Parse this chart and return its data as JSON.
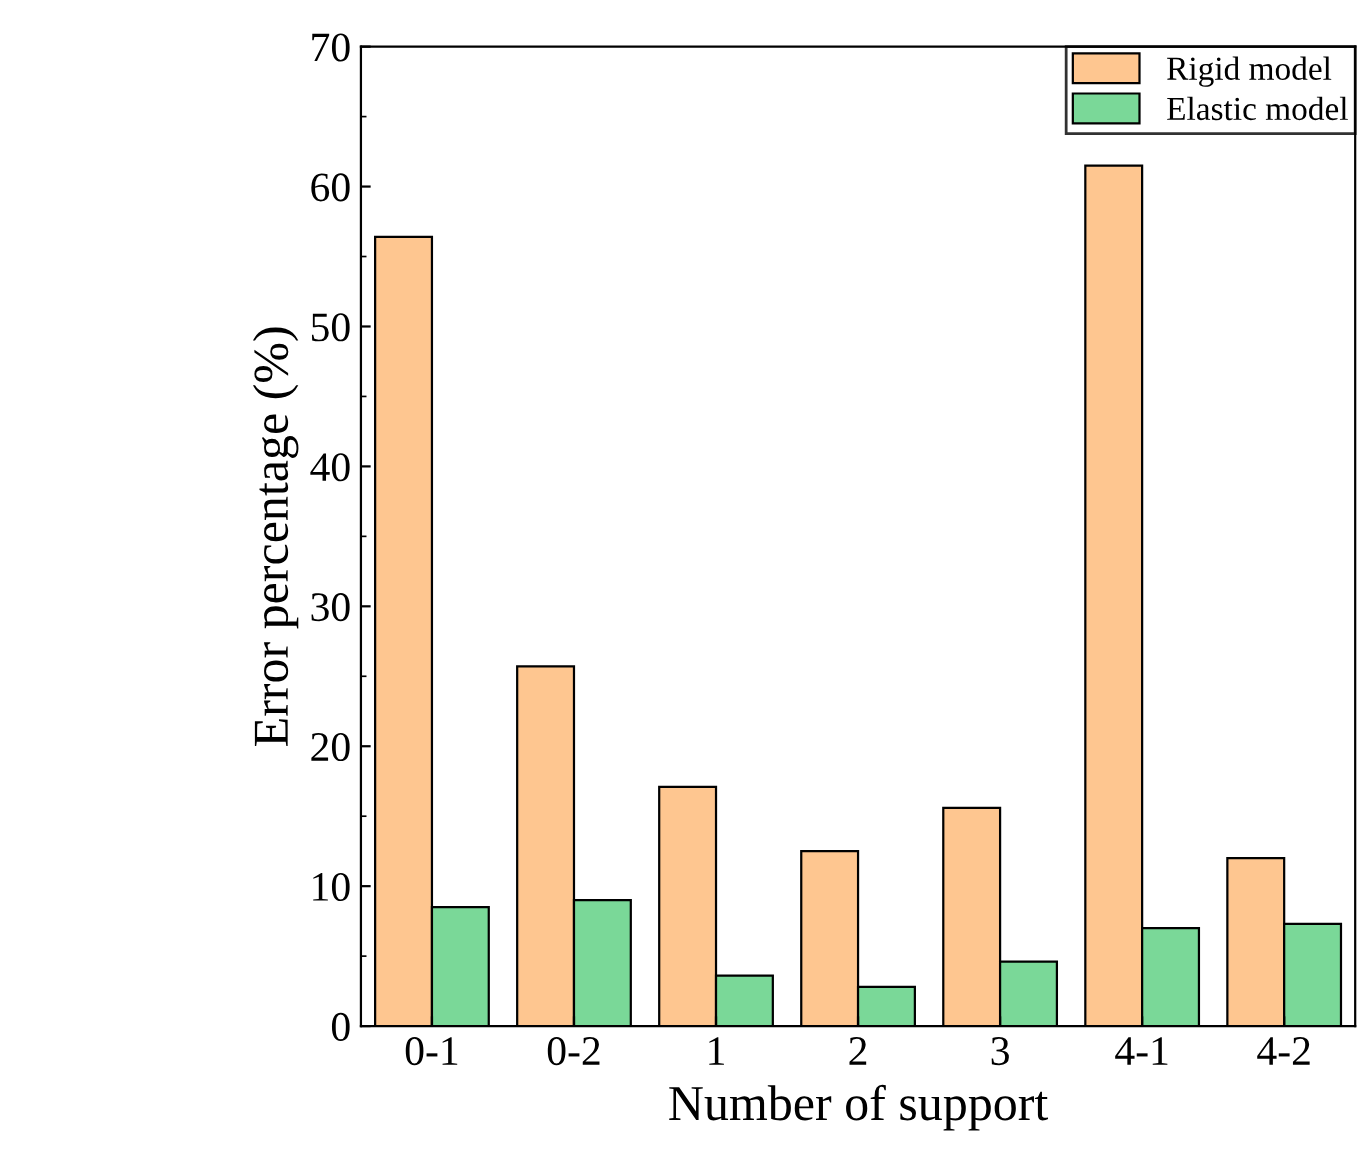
{
  "chart_data": {
    "type": "bar",
    "xlabel": "Number of support",
    "ylabel": "Error percentage (%)",
    "categories": [
      "0-1",
      "0-2",
      "1",
      "2",
      "3",
      "4-1",
      "4-2"
    ],
    "series": [
      {
        "name": "Rigid model",
        "color": "#fec690",
        "values": [
          56.4,
          25.7,
          17.1,
          12.5,
          15.6,
          61.5,
          12.0
        ]
      },
      {
        "name": "Elastic model",
        "color": "#7ad898",
        "values": [
          8.5,
          9.0,
          3.6,
          2.8,
          4.6,
          7.0,
          7.3
        ]
      }
    ],
    "ylim": [
      0,
      70
    ],
    "yticks": [
      0,
      10,
      20,
      30,
      40,
      50,
      60,
      70
    ],
    "grid": false,
    "legend": "top right"
  }
}
